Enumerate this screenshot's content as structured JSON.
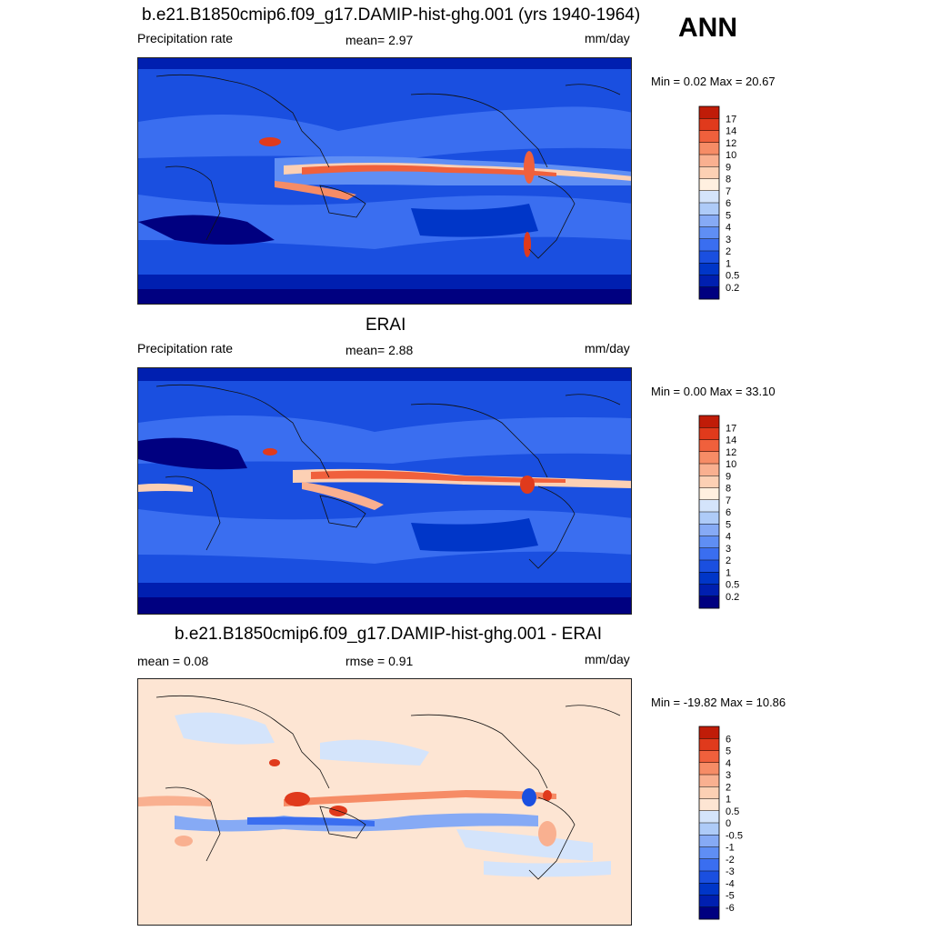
{
  "season": "ANN",
  "colors": {
    "precip_levels": [
      "#000080",
      "#001fb0",
      "#0036c8",
      "#1a4fe0",
      "#3a6ef0",
      "#5f8ef4",
      "#86aaf5",
      "#aecbf8",
      "#d4e4fb",
      "#fff0e0",
      "#fcd0b4",
      "#f9b090",
      "#f68c66",
      "#f0603c",
      "#e03a1c",
      "#c01c08",
      "#8f0000"
    ],
    "diff_levels": [
      "#000080",
      "#001fb0",
      "#0036c8",
      "#1a4fe0",
      "#3a6ef0",
      "#5f8ef4",
      "#86aaf5",
      "#aecbf8",
      "#d4e4fb",
      "#fde5d3",
      "#fcd0b4",
      "#f9b090",
      "#f68c66",
      "#f0603c",
      "#e03a1c",
      "#c01c08",
      "#8f0000"
    ]
  },
  "panels": [
    {
      "title": "b.e21.B1850cmip6.f09_g17.DAMIP-hist-ghg.001 (yrs 1940-1964)",
      "left_label": "Precipitation rate",
      "center_label": "mean=   2.97",
      "units": "mm/day",
      "minmax": "Min =   0.02 Max =  20.67",
      "colorbar_ticks": [
        "0.2",
        "0.5",
        "1",
        "2",
        "3",
        "4",
        "5",
        "6",
        "7",
        "8",
        "9",
        "10",
        "12",
        "14",
        "17"
      ],
      "colorbar_type": "precip"
    },
    {
      "title": "ERAI",
      "left_label": "Precipitation rate",
      "center_label": "mean=   2.88",
      "units": "mm/day",
      "minmax": "Min =   0.00 Max =  33.10",
      "colorbar_ticks": [
        "0.2",
        "0.5",
        "1",
        "2",
        "3",
        "4",
        "5",
        "6",
        "7",
        "8",
        "9",
        "10",
        "12",
        "14",
        "17"
      ],
      "colorbar_type": "precip"
    },
    {
      "title": "b.e21.B1850cmip6.f09_g17.DAMIP-hist-ghg.001 - ERAI",
      "left_label": "mean =   0.08",
      "center_label": "rmse =   0.91",
      "units": "mm/day",
      "minmax": "Min = -19.82 Max =  10.86",
      "colorbar_ticks": [
        "-6",
        "-5",
        "-4",
        "-3",
        "-2",
        "-1",
        "-0.5",
        "0",
        "0.5",
        "1",
        "2",
        "3",
        "4",
        "5",
        "6"
      ],
      "colorbar_type": "diff"
    }
  ],
  "chart_data": [
    {
      "type": "heatmap",
      "title": "b.e21.B1850cmip6.f09_g17.DAMIP-hist-ghg.001 (yrs 1940-1964)",
      "variable": "Precipitation rate",
      "units": "mm/day",
      "mean": 2.97,
      "min": 0.02,
      "max": 20.67,
      "contour_levels": [
        0.2,
        0.5,
        1,
        2,
        3,
        4,
        5,
        6,
        7,
        8,
        9,
        10,
        12,
        14,
        17
      ]
    },
    {
      "type": "heatmap",
      "title": "ERAI",
      "variable": "Precipitation rate",
      "units": "mm/day",
      "mean": 2.88,
      "min": 0.0,
      "max": 33.1,
      "contour_levels": [
        0.2,
        0.5,
        1,
        2,
        3,
        4,
        5,
        6,
        7,
        8,
        9,
        10,
        12,
        14,
        17
      ]
    },
    {
      "type": "heatmap",
      "title": "b.e21.B1850cmip6.f09_g17.DAMIP-hist-ghg.001 - ERAI",
      "units": "mm/day",
      "mean": 0.08,
      "rmse": 0.91,
      "min": -19.82,
      "max": 10.86,
      "contour_levels": [
        -6,
        -5,
        -4,
        -3,
        -2,
        -1,
        -0.5,
        0,
        0.5,
        1,
        2,
        3,
        4,
        5,
        6
      ]
    }
  ]
}
